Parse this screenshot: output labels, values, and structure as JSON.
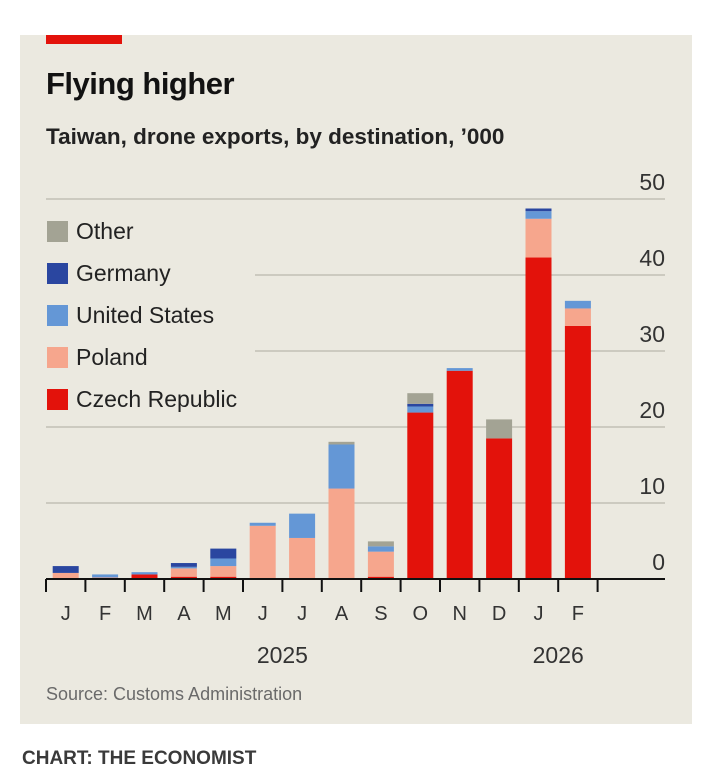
{
  "title": "Flying higher",
  "subtitle": "Taiwan, drone exports, by destination, ’000",
  "source": "Source: Customs Administration",
  "credit": "CHART: THE ECONOMIST",
  "chart_data": {
    "type": "bar",
    "stacked": true,
    "categories": [
      "J",
      "F",
      "M",
      "A",
      "M",
      "J",
      "J",
      "A",
      "S",
      "O",
      "N",
      "D",
      "J",
      "F"
    ],
    "year_labels": [
      {
        "label": "2025",
        "months": "J–D"
      },
      {
        "label": "2026",
        "months": "J–F"
      }
    ],
    "ylim": [
      0,
      50
    ],
    "yticks": [
      "0",
      "10",
      "20",
      "30",
      "40",
      "50"
    ],
    "grid": true,
    "legend_position": "top-left",
    "series": [
      {
        "name": "Czech Republic",
        "color": "#e3120b",
        "values": [
          0,
          0,
          0.6,
          0.3,
          0.3,
          0,
          0,
          0,
          0.3,
          21.9,
          27.4,
          18.5,
          42.3,
          33.3
        ]
      },
      {
        "name": "Poland",
        "color": "#f6a68d",
        "values": [
          0.8,
          0.2,
          0,
          1.1,
          1.4,
          7.0,
          5.4,
          11.9,
          3.3,
          0,
          0,
          0,
          5.1,
          2.3
        ]
      },
      {
        "name": "United States",
        "color": "#6497d6",
        "values": [
          0,
          0.4,
          0.3,
          0.2,
          1.0,
          0.4,
          3.2,
          5.8,
          0.7,
          0.8,
          0.35,
          0,
          1.0,
          1.0
        ]
      },
      {
        "name": "Germany",
        "color": "#2a46a0",
        "values": [
          0.9,
          0,
          0,
          0.5,
          1.3,
          0,
          0,
          0,
          0,
          0.35,
          0,
          0,
          0.35,
          0
        ]
      },
      {
        "name": "Other",
        "color": "#a3a394",
        "values": [
          0,
          0,
          0,
          0,
          0,
          0,
          0,
          0.35,
          0.65,
          1.4,
          0,
          2.5,
          0,
          0
        ]
      }
    ],
    "legend_order": [
      "Other",
      "Germany",
      "United States",
      "Poland",
      "Czech Republic"
    ]
  }
}
